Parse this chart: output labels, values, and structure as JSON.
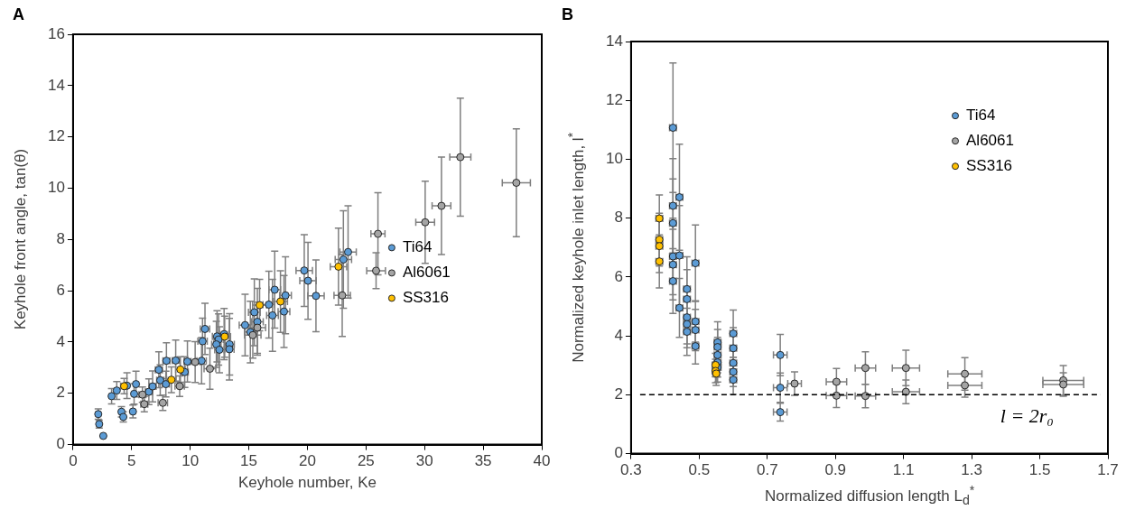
{
  "chart_data": [
    {
      "type": "scatter",
      "title": "A",
      "xlabel": "Keyhole number, Ke",
      "ylabel": "Keyhole front angle, tan(θ)",
      "xlim": [
        0,
        40
      ],
      "xticks": [
        0,
        5,
        10,
        15,
        20,
        25,
        30,
        35,
        40
      ],
      "ylim": [
        0,
        16
      ],
      "yticks": [
        0,
        2,
        4,
        6,
        8,
        10,
        12,
        14,
        16
      ],
      "grid": false,
      "legend": "right",
      "marker": "circle",
      "series": [
        {
          "name": "Ti64",
          "color": "#5b9bd5",
          "x": [
            2.15,
            2.23,
            2.58,
            3.29,
            3.73,
            4.13,
            4.29,
            4.6,
            5.11,
            5.37,
            5.21,
            6.47,
            6.79,
            7.32,
            7.44,
            7.92,
            7.97,
            8.76,
            9.53,
            9.76,
            10.97,
            11.26,
            11.05,
            12.29,
            12.42,
            12.23,
            12.49,
            12.89,
            13.36,
            13.34,
            14.68,
            15.13,
            15.73,
            15.47,
            16.71,
            17.21,
            17.02,
            18.13,
            18.0,
            19.73,
            20.05,
            20.73,
            23.07,
            23.47
          ],
          "values": [
            1.19,
            0.8,
            0.34,
            1.89,
            2.11,
            1.28,
            1.08,
            2.3,
            1.29,
            2.36,
            1.98,
            2.06,
            2.27,
            2.92,
            2.51,
            2.36,
            3.27,
            3.28,
            2.83,
            3.24,
            3.27,
            4.51,
            4.03,
            4.22,
            4.1,
            3.91,
            3.7,
            4.31,
            3.91,
            3.72,
            4.66,
            4.39,
            4.79,
            5.16,
            5.46,
            6.04,
            5.04,
            5.82,
            5.19,
            6.79,
            6.39,
            5.8,
            7.22,
            7.51
          ],
          "errors": [
            0.2,
            0.15,
            null,
            0.3,
            0.35,
            0.2,
            0.2,
            0.5,
            0.25,
            0.5,
            0.4,
            0.5,
            0.6,
            0.7,
            0.6,
            0.5,
            0.7,
            0.8,
            0.6,
            0.8,
            0.9,
            1.0,
            0.9,
            1.0,
            1.0,
            0.9,
            0.9,
            1.0,
            1.2,
            1.2,
            1.2,
            1.2,
            1.3,
            1.3,
            1.3,
            1.5,
            1.4,
            1.5,
            1.4,
            1.4,
            1.5,
            1.4,
            1.9,
            1.8
          ],
          "xerrors": [
            null,
            null,
            null,
            null,
            null,
            null,
            null,
            null,
            null,
            null,
            null,
            0.3,
            0.3,
            0.3,
            0.3,
            0.3,
            0.3,
            0.3,
            0.3,
            0.3,
            0.4,
            0.4,
            0.4,
            0.4,
            0.4,
            0.4,
            0.4,
            0.4,
            0.4,
            0.4,
            0.5,
            0.5,
            0.5,
            0.5,
            0.5,
            0.5,
            0.5,
            0.5,
            0.5,
            0.7,
            0.7,
            0.7,
            0.7,
            0.7
          ]
        },
        {
          "name": "Al6061",
          "color": "#a5a5a5",
          "x": [
            5.92,
            6.08,
            7.66,
            9.1,
            10.42,
            11.68,
            15.34,
            15.73,
            22.97,
            25.86,
            26.02,
            30.05,
            31.44,
            33.05,
            37.83
          ],
          "values": [
            1.95,
            1.58,
            1.63,
            2.28,
            3.22,
            2.96,
            4.27,
            4.56,
            5.82,
            6.78,
            8.22,
            8.67,
            9.31,
            11.21,
            10.21
          ],
          "errors": [
            0.3,
            0.3,
            0.3,
            0.4,
            0.8,
            0.8,
            0.9,
            1.0,
            1.6,
            0.7,
            1.6,
            1.6,
            1.9,
            2.3,
            2.1
          ],
          "xerrors": [
            0.3,
            0.3,
            0.4,
            0.4,
            0.5,
            0.5,
            0.7,
            0.7,
            0.7,
            0.8,
            0.6,
            0.8,
            0.8,
            0.9,
            1.2
          ]
        },
        {
          "name": "SS316",
          "color": "#ffc000",
          "x": [
            4.36,
            8.39,
            9.16,
            12.94,
            15.92,
            17.7,
            22.65
          ],
          "values": [
            2.28,
            2.53,
            2.93,
            4.21,
            5.44,
            5.58,
            6.94
          ],
          "errors": [
            0.3,
            0.5,
            0.5,
            0.8,
            1.0,
            1.2,
            1.5
          ],
          "xerrors": [
            0.3,
            0.4,
            0.4,
            0.5,
            0.6,
            0.6,
            0.7
          ]
        }
      ]
    },
    {
      "type": "scatter",
      "title": "B",
      "xlabel": "Normalized diffusion length L$_{d}$$^{*}$",
      "ylabel": "Normalized keyhole inlet length, l$^{*}$",
      "xlim": [
        0.3,
        1.7
      ],
      "xticks": [
        0.3,
        0.5,
        0.7,
        0.9,
        1.1,
        1.3,
        1.5,
        1.7
      ],
      "ylim": [
        0,
        14
      ],
      "yticks": [
        0,
        2,
        4,
        6,
        8,
        10,
        12,
        14
      ],
      "grid": false,
      "legend": "top right",
      "marker": "circle",
      "ref_lines": [
        {
          "axis": "y",
          "value": 2,
          "label": "l = 2r₀",
          "line_style": "dashed",
          "color": "#000000"
        }
      ],
      "series": [
        {
          "name": "Ti64",
          "color": "#5b9bd5",
          "x": [
            0.423,
            0.442,
            0.423,
            0.423,
            0.423,
            0.442,
            0.423,
            0.423,
            0.442,
            0.464,
            0.464,
            0.489,
            0.464,
            0.464,
            0.464,
            0.489,
            0.489,
            0.489,
            0.554,
            0.554,
            0.554,
            0.554,
            0.554,
            0.6,
            0.6,
            0.6,
            0.6,
            0.6,
            0.738,
            0.738,
            0.738
          ],
          "values": [
            11.07,
            8.71,
            8.42,
            7.83,
            6.7,
            6.73,
            6.42,
            5.86,
            4.95,
            5.59,
            5.25,
            6.47,
            4.63,
            4.4,
            4.14,
            4.49,
            4.2,
            3.65,
            3.78,
            3.62,
            3.35,
            3.1,
            2.93,
            4.08,
            3.58,
            3.08,
            2.78,
            2.51,
            3.35,
            2.24,
            1.41
          ],
          "errors": [
            2.2,
            1.8,
            1.6,
            1.5,
            1.3,
            1.7,
            1.2,
            1.1,
            1.0,
            1.1,
            1.0,
            1.3,
            0.9,
            0.8,
            0.8,
            0.7,
            0.7,
            0.6,
            0.7,
            0.6,
            0.6,
            0.5,
            0.5,
            0.8,
            0.7,
            0.6,
            0.5,
            0.5,
            0.7,
            0.5,
            0.3
          ],
          "xerrors": [
            0.01,
            0.01,
            0.01,
            0.01,
            0.01,
            0.01,
            0.01,
            0.01,
            0.01,
            0.01,
            0.01,
            0.01,
            0.01,
            0.01,
            0.01,
            0.01,
            0.01,
            0.01,
            0.01,
            0.01,
            0.01,
            0.01,
            0.01,
            0.01,
            0.01,
            0.01,
            0.01,
            0.01,
            0.02,
            0.02,
            0.02
          ]
        },
        {
          "name": "Al6061",
          "color": "#a5a5a5",
          "x": [
            0.78,
            0.903,
            0.903,
            0.988,
            0.988,
            1.107,
            1.107,
            1.28,
            1.28,
            1.569,
            1.569
          ],
          "values": [
            2.38,
            2.44,
            1.97,
            2.91,
            1.96,
            2.91,
            2.1,
            2.71,
            2.32,
            2.49,
            2.35
          ],
          "errors": [
            0.4,
            0.45,
            0.4,
            0.55,
            0.4,
            0.6,
            0.4,
            0.55,
            0.4,
            0.5,
            0.4
          ],
          "xerrors": [
            0.02,
            0.03,
            0.03,
            0.03,
            0.03,
            0.04,
            0.04,
            0.05,
            0.05,
            0.06,
            0.06
          ]
        },
        {
          "name": "SS316",
          "color": "#ffc000",
          "x": [
            0.383,
            0.383,
            0.383,
            0.383,
            0.548,
            0.548,
            0.55
          ],
          "values": [
            7.99,
            7.27,
            7.05,
            6.53,
            3.01,
            2.81,
            2.72
          ],
          "errors": [
            0.8,
            0.9,
            0.9,
            0.9,
            0.4,
            0.4,
            0.4
          ],
          "xerrors": [
            0.01,
            0.01,
            0.01,
            0.01,
            0.01,
            0.01,
            0.01
          ]
        }
      ]
    }
  ]
}
